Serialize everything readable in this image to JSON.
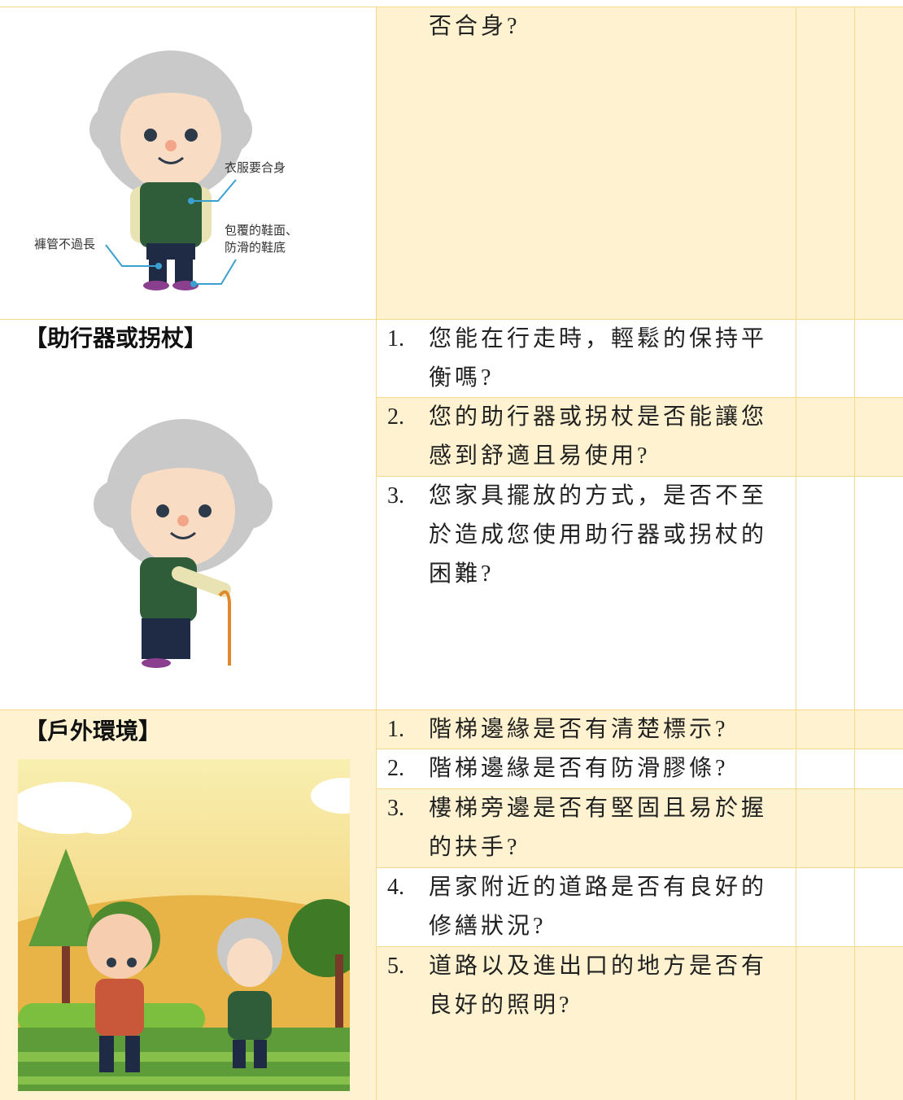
{
  "sections": [
    {
      "figure": {
        "labels": [
          "衣服要合身",
          "包覆的鞋面、",
          "防滑的鞋底",
          "褲管不過長"
        ]
      },
      "items": [
        {
          "text": "否合身?"
        }
      ]
    },
    {
      "heading": "【助行器或拐杖】",
      "items": [
        {
          "number": "1.",
          "text": "您能在行走時，輕鬆的保持平衡嗎?"
        },
        {
          "number": "2.",
          "text": "您的助行器或拐杖是否能讓您感到舒適且易使用?"
        },
        {
          "number": "3.",
          "text": "您家具擺放的方式，是否不至於造成您使用助行器或拐杖的困難?"
        }
      ]
    },
    {
      "heading": "【戶外環境】",
      "items": [
        {
          "number": "1.",
          "text": "階梯邊緣是否有清楚標示?"
        },
        {
          "number": "2.",
          "text": "階梯邊緣是否有防滑膠條?"
        },
        {
          "number": "3.",
          "text": "樓梯旁邊是否有堅固且易於握的扶手?"
        },
        {
          "number": "4.",
          "text": "居家附近的道路是否有良好的修繕狀況?"
        },
        {
          "number": "5.",
          "text": "道路以及進出口的地方是否有良好的照明?"
        }
      ]
    }
  ]
}
